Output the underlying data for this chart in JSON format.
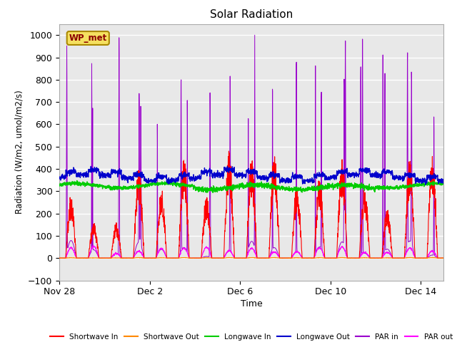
{
  "title": "Solar Radiation",
  "xlabel": "Time",
  "ylabel": "Radiation (W/m2, umol/m2/s)",
  "ylim": [
    -100,
    1050
  ],
  "yticks": [
    -100,
    0,
    100,
    200,
    300,
    400,
    500,
    600,
    700,
    800,
    900,
    1000
  ],
  "plot_bg_color": "#e8e8e8",
  "legend_labels": [
    "Shortwave In",
    "Shortwave Out",
    "Longwave In",
    "Longwave Out",
    "PAR in",
    "PAR out"
  ],
  "legend_colors": [
    "#ff0000",
    "#ff8800",
    "#00cc00",
    "#0000cc",
    "#9900cc",
    "#ff00ff"
  ],
  "legend_linestyles": [
    "-",
    "-",
    "-",
    "-",
    "-",
    "-"
  ],
  "watermark_text": "WP_met",
  "watermark_color": "#8b0000",
  "watermark_bg": "#f5e060",
  "watermark_border": "#aa8800",
  "x_tick_labels": [
    "Nov 28",
    "Dec 2",
    "Dec 6",
    "Dec 10",
    "Dec 14"
  ],
  "x_tick_positions": [
    0,
    4,
    8,
    12,
    16
  ],
  "num_days": 17,
  "seed": 42
}
